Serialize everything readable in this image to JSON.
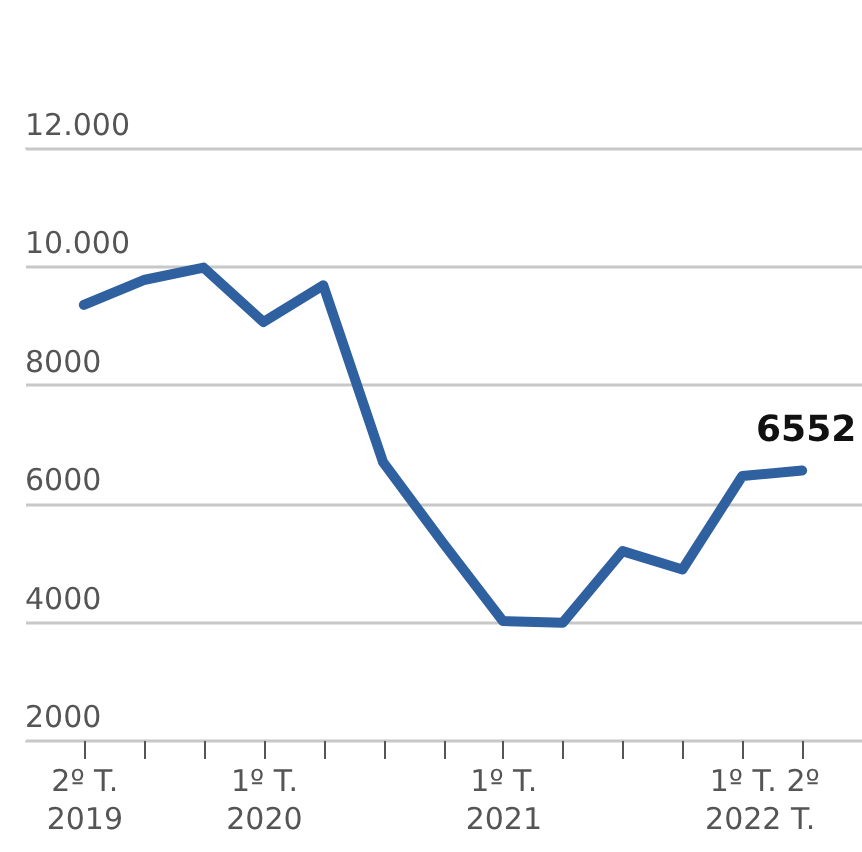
{
  "chart_data": {
    "type": "line",
    "categories": [
      "2º T.\n2019",
      null,
      null,
      "1º T.\n2020",
      null,
      null,
      null,
      "1º T.\n2021",
      null,
      null,
      null,
      "1º T.\n2022",
      "2º\nT."
    ],
    "series": [
      {
        "color": "#2f609f",
        "values": [
          9350,
          9770,
          9980,
          9060,
          9680,
          6690,
          5330,
          4010,
          3980,
          5190,
          4880,
          6460,
          6552
        ],
        "value_labels": [
          null,
          null,
          null,
          null,
          null,
          null,
          null,
          null,
          null,
          null,
          null,
          null,
          "6552"
        ]
      }
    ],
    "ylim": [
      2000,
      12000
    ],
    "yticks": [
      2000,
      4000,
      6000,
      8000,
      {
        "value": 10000,
        "label": "10.000"
      },
      {
        "value": 12000,
        "label": "12.000"
      }
    ],
    "grid": "y",
    "line_style": "solid"
  }
}
